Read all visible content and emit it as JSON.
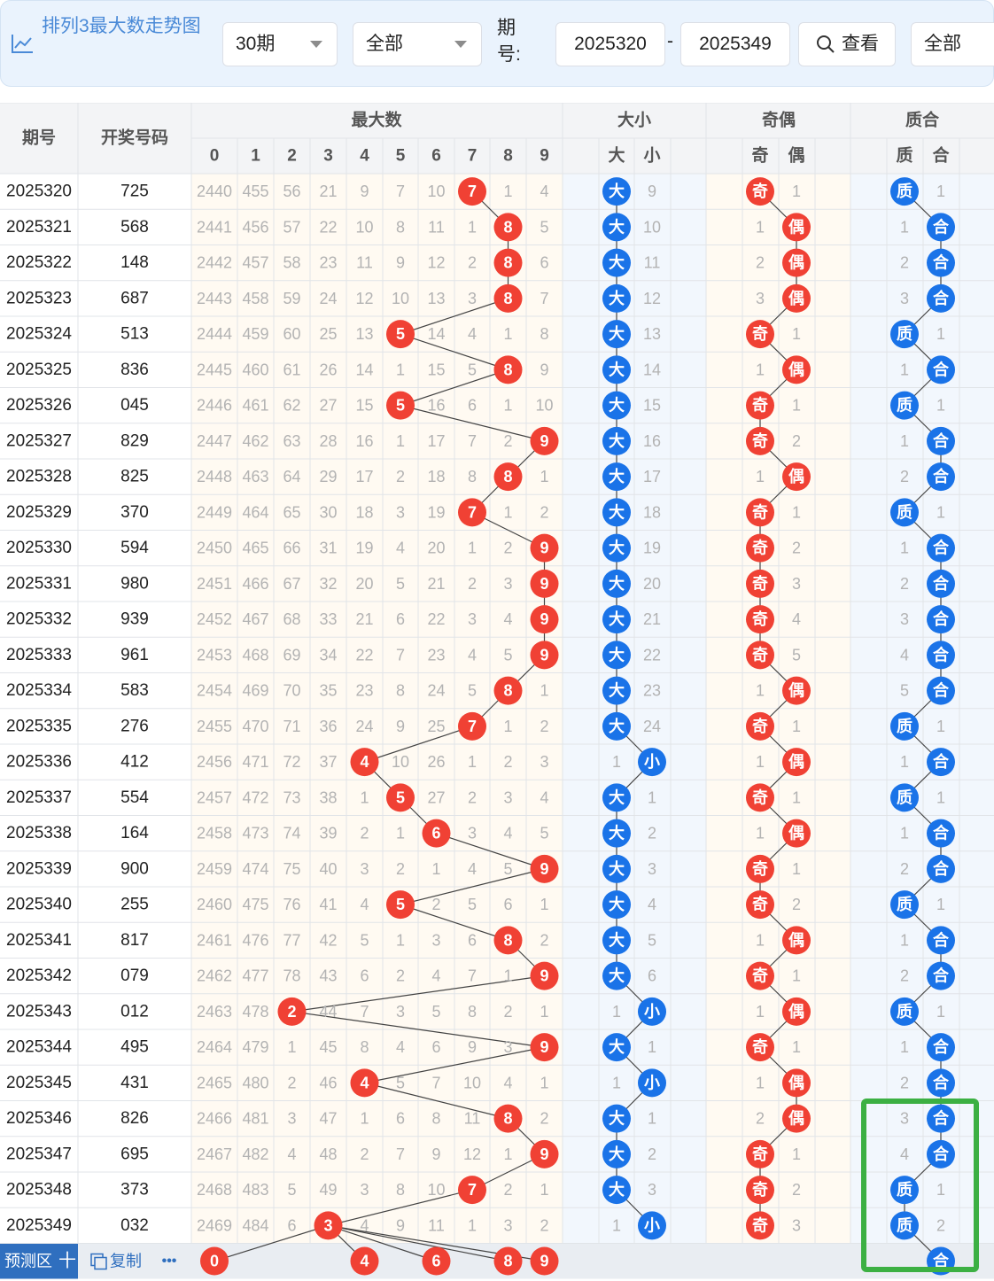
{
  "toolbar": {
    "title": "排列3最大数走势图",
    "period_select": "30期",
    "filter_select": "全部",
    "period_label": "期号:",
    "from_period": "2025320",
    "dash": "-",
    "to_period": "2025349",
    "view_button": "查看",
    "right_select": "全部"
  },
  "table": {
    "col_period": "期号",
    "col_numbers": "开奖号码",
    "grp_max": "最大数",
    "grp_bigsmall": "大小",
    "grp_oddeven": "奇偶",
    "grp_primecomp": "质合",
    "digit_headers": [
      "0",
      "1",
      "2",
      "3",
      "4",
      "5",
      "6",
      "7",
      "8",
      "9"
    ],
    "big_label": "大",
    "small_label": "小",
    "odd_label": "奇",
    "even_label": "偶",
    "prime_label": "质",
    "comp_label": "合",
    "rows": [
      {
        "p": "2025320",
        "n": "725",
        "d": [
          "2440",
          "455",
          "56",
          "21",
          "9",
          "7",
          "10",
          "7",
          "1",
          "4"
        ],
        "max": 7,
        "bs": [
          "B",
          "9"
        ],
        "oe": [
          "O",
          "1"
        ],
        "pc": [
          "P",
          "1"
        ]
      },
      {
        "p": "2025321",
        "n": "568",
        "d": [
          "2441",
          "456",
          "57",
          "22",
          "10",
          "8",
          "11",
          "1",
          "8",
          "5"
        ],
        "max": 8,
        "bs": [
          "B",
          "10"
        ],
        "oe": [
          "1",
          "E"
        ],
        "pc": [
          "1",
          "C"
        ]
      },
      {
        "p": "2025322",
        "n": "148",
        "d": [
          "2442",
          "457",
          "58",
          "23",
          "11",
          "9",
          "12",
          "2",
          "8",
          "6"
        ],
        "max": 8,
        "bs": [
          "B",
          "11"
        ],
        "oe": [
          "2",
          "E"
        ],
        "pc": [
          "2",
          "C"
        ]
      },
      {
        "p": "2025323",
        "n": "687",
        "d": [
          "2443",
          "458",
          "59",
          "24",
          "12",
          "10",
          "13",
          "3",
          "8",
          "7"
        ],
        "max": 8,
        "bs": [
          "B",
          "12"
        ],
        "oe": [
          "3",
          "E"
        ],
        "pc": [
          "3",
          "C"
        ]
      },
      {
        "p": "2025324",
        "n": "513",
        "d": [
          "2444",
          "459",
          "60",
          "25",
          "13",
          "5",
          "14",
          "4",
          "1",
          "8"
        ],
        "max": 5,
        "bs": [
          "B",
          "13"
        ],
        "oe": [
          "O",
          "1"
        ],
        "pc": [
          "P",
          "1"
        ]
      },
      {
        "p": "2025325",
        "n": "836",
        "d": [
          "2445",
          "460",
          "61",
          "26",
          "14",
          "1",
          "15",
          "5",
          "8",
          "9"
        ],
        "max": 8,
        "bs": [
          "B",
          "14"
        ],
        "oe": [
          "1",
          "E"
        ],
        "pc": [
          "1",
          "C"
        ]
      },
      {
        "p": "2025326",
        "n": "045",
        "d": [
          "2446",
          "461",
          "62",
          "27",
          "15",
          "5",
          "16",
          "6",
          "1",
          "10"
        ],
        "max": 5,
        "bs": [
          "B",
          "15"
        ],
        "oe": [
          "O",
          "1"
        ],
        "pc": [
          "P",
          "1"
        ]
      },
      {
        "p": "2025327",
        "n": "829",
        "d": [
          "2447",
          "462",
          "63",
          "28",
          "16",
          "1",
          "17",
          "7",
          "2",
          "9"
        ],
        "max": 9,
        "bs": [
          "B",
          "16"
        ],
        "oe": [
          "O",
          "2"
        ],
        "pc": [
          "1",
          "C"
        ]
      },
      {
        "p": "2025328",
        "n": "825",
        "d": [
          "2448",
          "463",
          "64",
          "29",
          "17",
          "2",
          "18",
          "8",
          "8",
          "1"
        ],
        "max": 8,
        "bs": [
          "B",
          "17"
        ],
        "oe": [
          "1",
          "E"
        ],
        "pc": [
          "2",
          "C"
        ]
      },
      {
        "p": "2025329",
        "n": "370",
        "d": [
          "2449",
          "464",
          "65",
          "30",
          "18",
          "3",
          "19",
          "7",
          "1",
          "2"
        ],
        "max": 7,
        "bs": [
          "B",
          "18"
        ],
        "oe": [
          "O",
          "1"
        ],
        "pc": [
          "P",
          "1"
        ]
      },
      {
        "p": "2025330",
        "n": "594",
        "d": [
          "2450",
          "465",
          "66",
          "31",
          "19",
          "4",
          "20",
          "1",
          "2",
          "9"
        ],
        "max": 9,
        "bs": [
          "B",
          "19"
        ],
        "oe": [
          "O",
          "2"
        ],
        "pc": [
          "1",
          "C"
        ]
      },
      {
        "p": "2025331",
        "n": "980",
        "d": [
          "2451",
          "466",
          "67",
          "32",
          "20",
          "5",
          "21",
          "2",
          "3",
          "9"
        ],
        "max": 9,
        "bs": [
          "B",
          "20"
        ],
        "oe": [
          "O",
          "3"
        ],
        "pc": [
          "2",
          "C"
        ]
      },
      {
        "p": "2025332",
        "n": "939",
        "d": [
          "2452",
          "467",
          "68",
          "33",
          "21",
          "6",
          "22",
          "3",
          "4",
          "9"
        ],
        "max": 9,
        "bs": [
          "B",
          "21"
        ],
        "oe": [
          "O",
          "4"
        ],
        "pc": [
          "3",
          "C"
        ]
      },
      {
        "p": "2025333",
        "n": "961",
        "d": [
          "2453",
          "468",
          "69",
          "34",
          "22",
          "7",
          "23",
          "4",
          "5",
          "9"
        ],
        "max": 9,
        "bs": [
          "B",
          "22"
        ],
        "oe": [
          "O",
          "5"
        ],
        "pc": [
          "4",
          "C"
        ]
      },
      {
        "p": "2025334",
        "n": "583",
        "d": [
          "2454",
          "469",
          "70",
          "35",
          "23",
          "8",
          "24",
          "5",
          "8",
          "1"
        ],
        "max": 8,
        "bs": [
          "B",
          "23"
        ],
        "oe": [
          "1",
          "E"
        ],
        "pc": [
          "5",
          "C"
        ]
      },
      {
        "p": "2025335",
        "n": "276",
        "d": [
          "2455",
          "470",
          "71",
          "36",
          "24",
          "9",
          "25",
          "7",
          "1",
          "2"
        ],
        "max": 7,
        "bs": [
          "B",
          "24"
        ],
        "oe": [
          "O",
          "1"
        ],
        "pc": [
          "P",
          "1"
        ]
      },
      {
        "p": "2025336",
        "n": "412",
        "d": [
          "2456",
          "471",
          "72",
          "37",
          "4",
          "10",
          "26",
          "1",
          "2",
          "3"
        ],
        "max": 4,
        "bs": [
          "1",
          "S"
        ],
        "oe": [
          "1",
          "E"
        ],
        "pc": [
          "1",
          "C"
        ]
      },
      {
        "p": "2025337",
        "n": "554",
        "d": [
          "2457",
          "472",
          "73",
          "38",
          "1",
          "5",
          "27",
          "2",
          "3",
          "4"
        ],
        "max": 5,
        "bs": [
          "B",
          "1"
        ],
        "oe": [
          "O",
          "1"
        ],
        "pc": [
          "P",
          "1"
        ]
      },
      {
        "p": "2025338",
        "n": "164",
        "d": [
          "2458",
          "473",
          "74",
          "39",
          "2",
          "1",
          "6",
          "3",
          "4",
          "5"
        ],
        "max": 6,
        "bs": [
          "B",
          "2"
        ],
        "oe": [
          "1",
          "E"
        ],
        "pc": [
          "1",
          "C"
        ]
      },
      {
        "p": "2025339",
        "n": "900",
        "d": [
          "2459",
          "474",
          "75",
          "40",
          "3",
          "2",
          "1",
          "4",
          "5",
          "9"
        ],
        "max": 9,
        "bs": [
          "B",
          "3"
        ],
        "oe": [
          "O",
          "1"
        ],
        "pc": [
          "2",
          "C"
        ]
      },
      {
        "p": "2025340",
        "n": "255",
        "d": [
          "2460",
          "475",
          "76",
          "41",
          "4",
          "5",
          "2",
          "5",
          "6",
          "1"
        ],
        "max": 5,
        "bs": [
          "B",
          "4"
        ],
        "oe": [
          "O",
          "2"
        ],
        "pc": [
          "P",
          "1"
        ]
      },
      {
        "p": "2025341",
        "n": "817",
        "d": [
          "2461",
          "476",
          "77",
          "42",
          "5",
          "1",
          "3",
          "6",
          "8",
          "2"
        ],
        "max": 8,
        "bs": [
          "B",
          "5"
        ],
        "oe": [
          "1",
          "E"
        ],
        "pc": [
          "1",
          "C"
        ]
      },
      {
        "p": "2025342",
        "n": "079",
        "d": [
          "2462",
          "477",
          "78",
          "43",
          "6",
          "2",
          "4",
          "7",
          "1",
          "9"
        ],
        "max": 9,
        "bs": [
          "B",
          "6"
        ],
        "oe": [
          "O",
          "1"
        ],
        "pc": [
          "2",
          "C"
        ]
      },
      {
        "p": "2025343",
        "n": "012",
        "d": [
          "2463",
          "478",
          "2",
          "44",
          "7",
          "3",
          "5",
          "8",
          "2",
          "1"
        ],
        "max": 2,
        "bs": [
          "1",
          "S"
        ],
        "oe": [
          "1",
          "E"
        ],
        "pc": [
          "P",
          "1"
        ]
      },
      {
        "p": "2025344",
        "n": "495",
        "d": [
          "2464",
          "479",
          "1",
          "45",
          "8",
          "4",
          "6",
          "9",
          "3",
          "9"
        ],
        "max": 9,
        "bs": [
          "B",
          "1"
        ],
        "oe": [
          "O",
          "1"
        ],
        "pc": [
          "1",
          "C"
        ]
      },
      {
        "p": "2025345",
        "n": "431",
        "d": [
          "2465",
          "480",
          "2",
          "46",
          "4",
          "5",
          "7",
          "10",
          "4",
          "1"
        ],
        "max": 4,
        "bs": [
          "1",
          "S"
        ],
        "oe": [
          "1",
          "E"
        ],
        "pc": [
          "2",
          "C"
        ]
      },
      {
        "p": "2025346",
        "n": "826",
        "d": [
          "2466",
          "481",
          "3",
          "47",
          "1",
          "6",
          "8",
          "11",
          "8",
          "2"
        ],
        "max": 8,
        "bs": [
          "B",
          "1"
        ],
        "oe": [
          "2",
          "E"
        ],
        "pc": [
          "3",
          "C"
        ]
      },
      {
        "p": "2025347",
        "n": "695",
        "d": [
          "2467",
          "482",
          "4",
          "48",
          "2",
          "7",
          "9",
          "12",
          "1",
          "9"
        ],
        "max": 9,
        "bs": [
          "B",
          "2"
        ],
        "oe": [
          "O",
          "1"
        ],
        "pc": [
          "4",
          "C"
        ]
      },
      {
        "p": "2025348",
        "n": "373",
        "d": [
          "2468",
          "483",
          "5",
          "49",
          "3",
          "8",
          "10",
          "7",
          "2",
          "1"
        ],
        "max": 7,
        "bs": [
          "B",
          "3"
        ],
        "oe": [
          "O",
          "2"
        ],
        "pc": [
          "P",
          "1"
        ]
      },
      {
        "p": "2025349",
        "n": "032",
        "d": [
          "2469",
          "484",
          "6",
          "3",
          "4",
          "9",
          "11",
          "1",
          "3",
          "2"
        ],
        "max": 3,
        "bs": [
          "1",
          "S"
        ],
        "oe": [
          "O",
          "3"
        ],
        "pc": [
          "P",
          "2"
        ]
      }
    ],
    "predict_label": "预测区",
    "predict_plus": "十",
    "copy_label": "复制",
    "more_label": "•••",
    "predict_balls": [
      0,
      4,
      6,
      8,
      9
    ],
    "predict_pc": "C"
  },
  "colors": {
    "red_ball": "#f04134",
    "blue_ball": "#1a73e8",
    "miss_text": "#b3b3b3",
    "header_bg": "#f3f4f6",
    "highlight_box": "#3cb043",
    "accent": "#4a8ad7"
  }
}
